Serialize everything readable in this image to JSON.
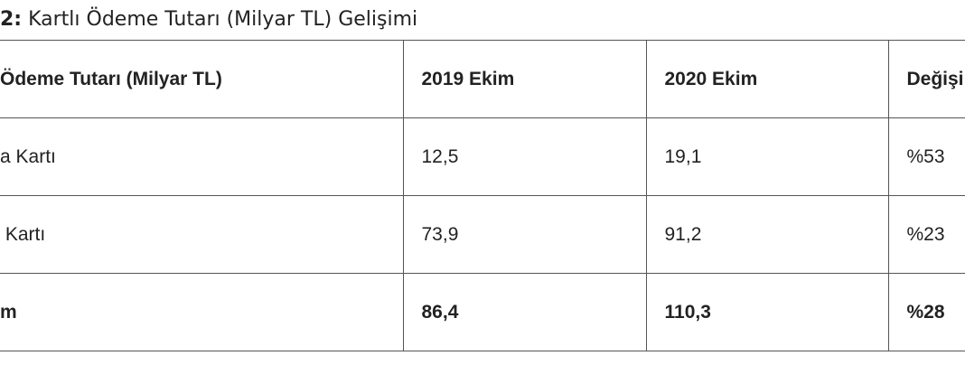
{
  "title": {
    "label": "2:",
    "text": "Kartlı Ödeme Tutarı (Milyar TL) Gelişimi"
  },
  "table": {
    "header": [
      "Ödeme Tutarı (Milyar TL)",
      "2019 Ekim",
      "2020 Ekim",
      "Değişi"
    ],
    "rows": [
      [
        "a Kartı",
        "12,5",
        "19,1",
        "%53"
      ],
      [
        " Kartı",
        "73,9",
        "91,2",
        "%23"
      ],
      [
        "m",
        "86,4",
        "110,3",
        "%28"
      ]
    ]
  }
}
